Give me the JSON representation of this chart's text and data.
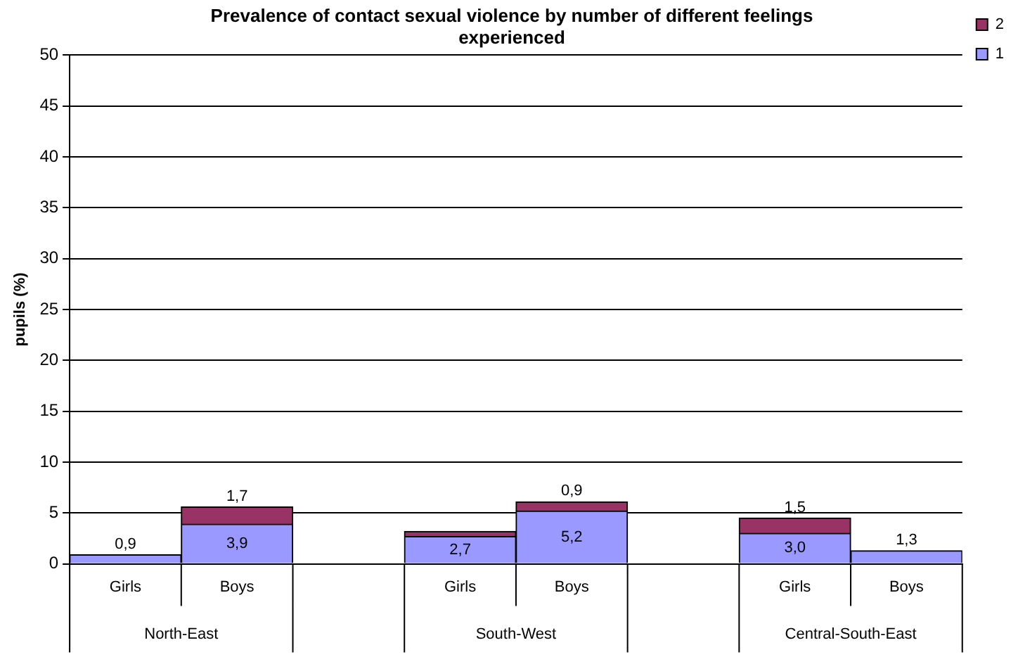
{
  "chart_data": {
    "type": "bar",
    "stacked": true,
    "title": "Prevalence of contact sexual violence by number of different feelings experienced",
    "ylabel": "pupils (%)",
    "categories": [
      "Girls",
      "Boys",
      null,
      "Girls",
      "Boys",
      null,
      "Girls",
      "Boys"
    ],
    "series": [
      {
        "name": "1",
        "color": "#9999ff",
        "values": [
          0.9,
          3.9,
          null,
          2.7,
          5.2,
          null,
          3.0,
          1.3
        ],
        "value_labels": [
          "0,9",
          "3,9",
          null,
          "2,7",
          "5,2",
          null,
          "3,0",
          "1,3"
        ]
      },
      {
        "name": "2",
        "color": "#993366",
        "values": [
          null,
          1.7,
          null,
          0.5,
          0.9,
          null,
          1.5,
          null
        ],
        "value_labels": [
          null,
          "1,7",
          null,
          null,
          "0,9",
          null,
          "1,5",
          null
        ]
      }
    ],
    "annotations": [
      "North-East",
      "South-West",
      "Central-South-East"
    ],
    "ylim": [
      0,
      50
    ],
    "yticks": [
      0,
      5,
      10,
      15,
      20,
      25,
      30,
      35,
      40,
      45,
      50
    ],
    "grid": "y",
    "legend": "top right"
  }
}
